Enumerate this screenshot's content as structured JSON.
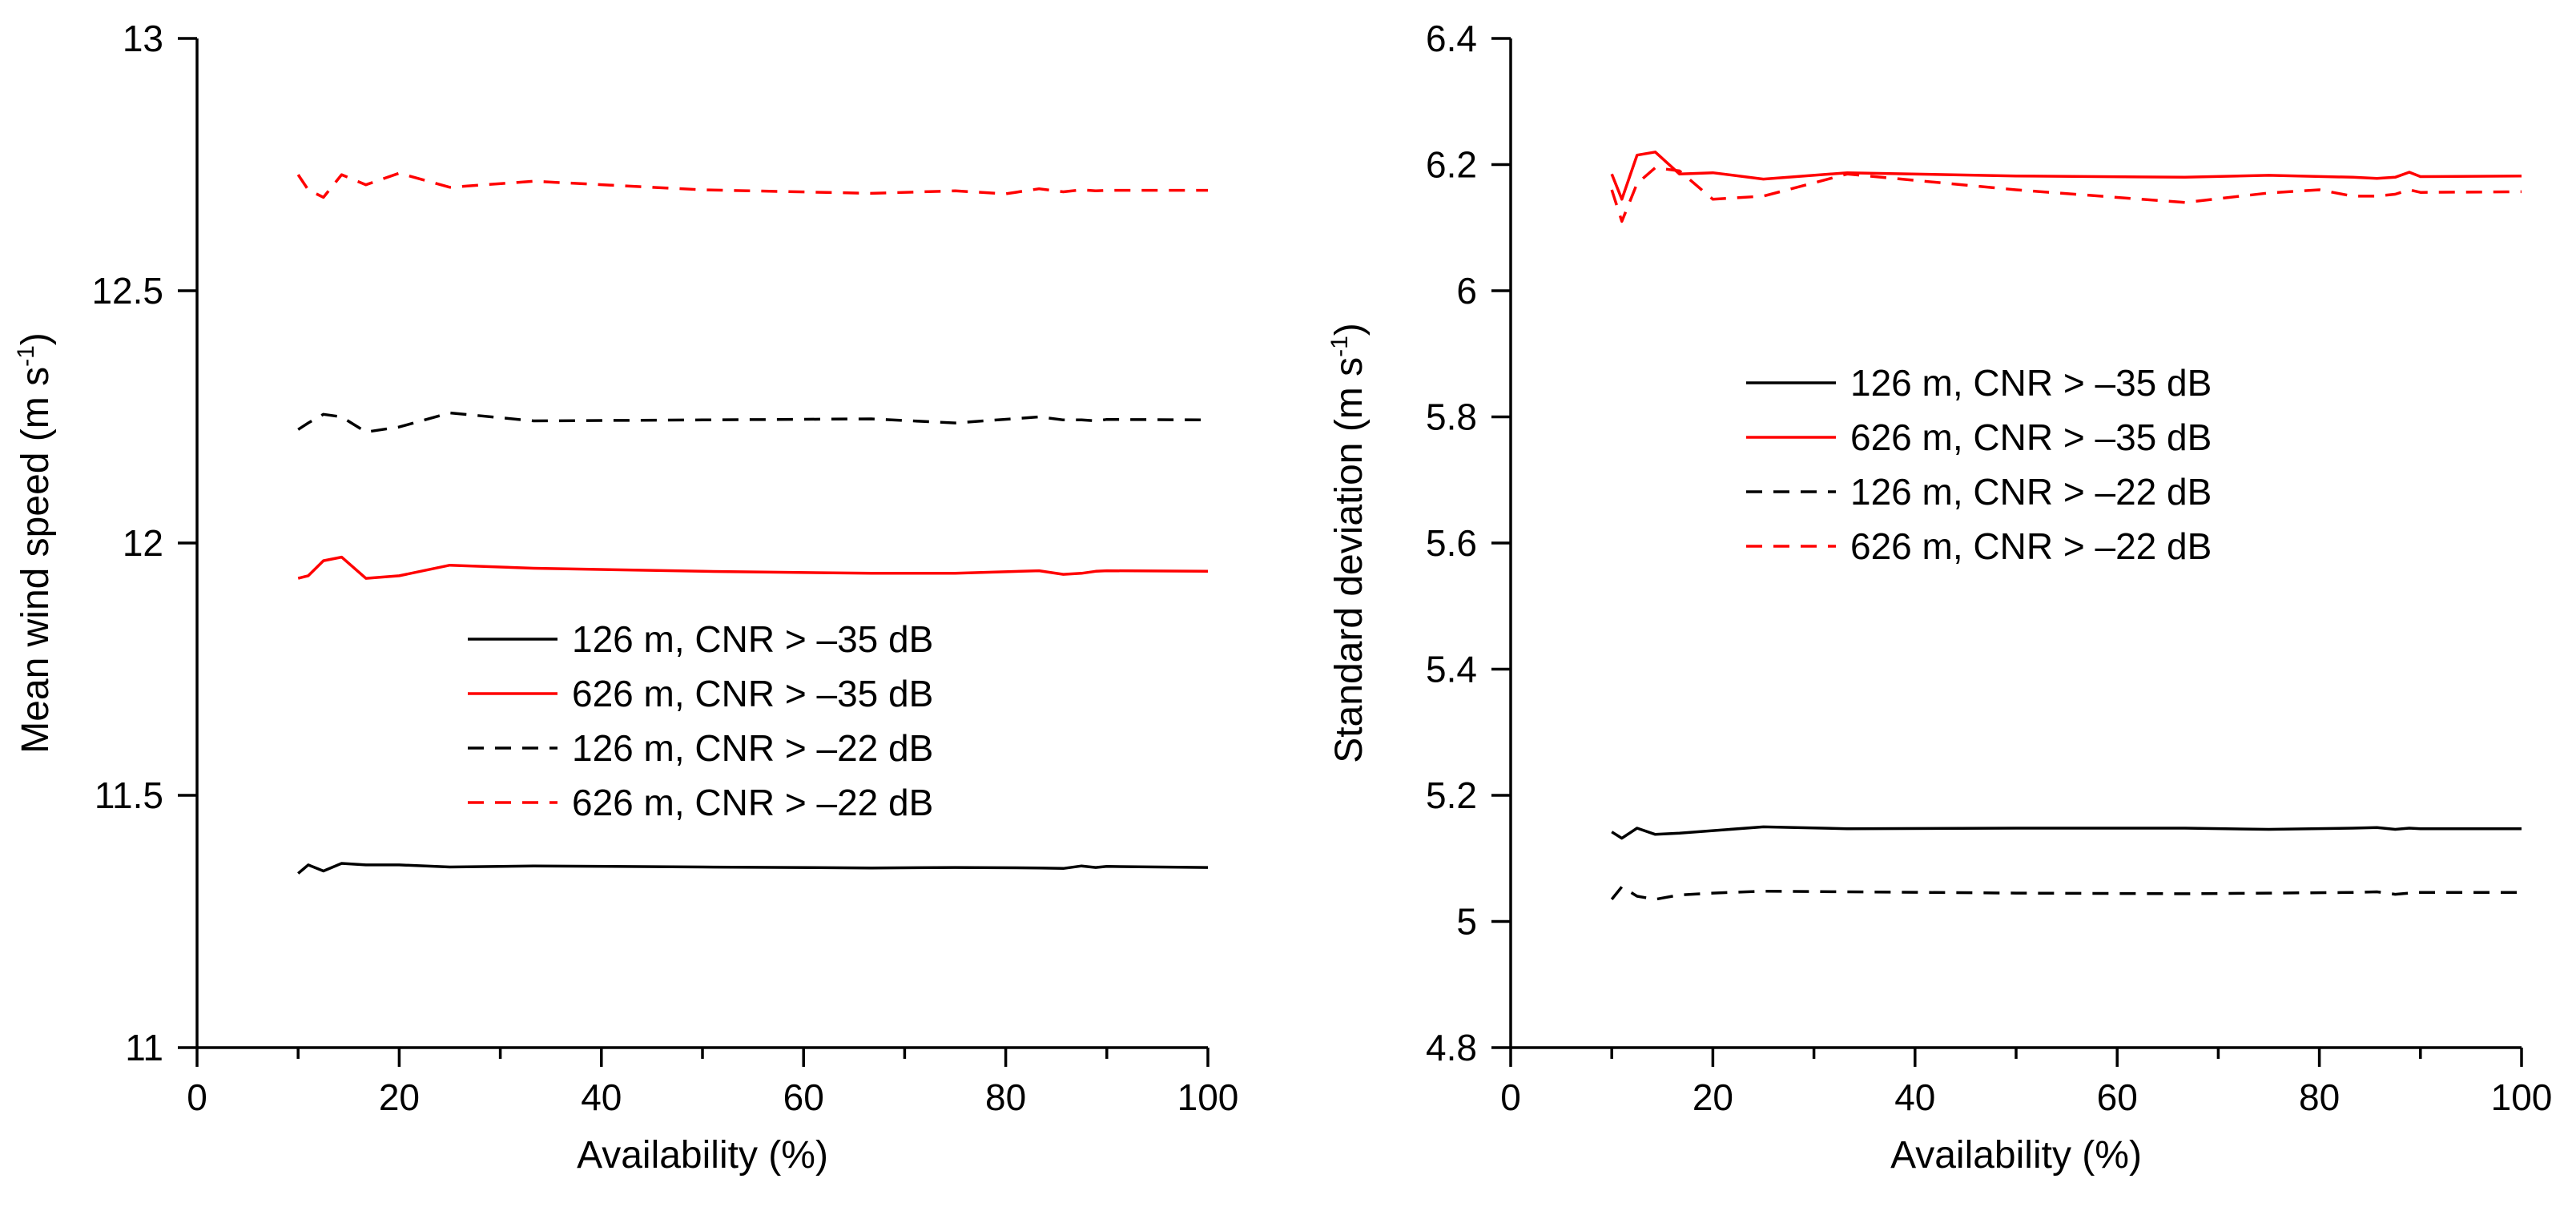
{
  "chart_data": [
    {
      "type": "line",
      "title": "",
      "xlabel": "Availability (%)",
      "ylabel": "Mean wind speed (m s",
      "ylabel_sup": "-1",
      "ylabel_close": ")",
      "xlim": [
        0,
        100
      ],
      "ylim": [
        11,
        13
      ],
      "xticks": [
        0,
        20,
        40,
        60,
        80,
        100
      ],
      "xtick_labels": [
        "0",
        "20",
        "40",
        "60",
        "80",
        "100"
      ],
      "yticks": [
        11,
        11.5,
        12,
        12.5,
        13
      ],
      "ytick_labels": [
        "11",
        "11.5",
        "12",
        "12.5",
        "13"
      ],
      "legend_position": "center",
      "series": [
        {
          "name": "126 m, CNR > –35 dB",
          "color": "#000000",
          "dash": "solid",
          "x": [
            10,
            11,
            12.5,
            14.3,
            16.7,
            20,
            25,
            33.3,
            50,
            66.7,
            75,
            83.3,
            85.7,
            87.5,
            88.9,
            90,
            100
          ],
          "y": [
            11.345,
            11.362,
            11.35,
            11.365,
            11.362,
            11.362,
            11.358,
            11.36,
            11.358,
            11.356,
            11.357,
            11.356,
            11.355,
            11.36,
            11.357,
            11.359,
            11.357
          ]
        },
        {
          "name": "626 m, CNR > –35 dB",
          "color": "#ff0000",
          "dash": "solid",
          "x": [
            10,
            11,
            12.5,
            14.3,
            16.7,
            20,
            25,
            33.3,
            50,
            66.7,
            75,
            83.3,
            85.7,
            87.5,
            88.9,
            90,
            100
          ],
          "y": [
            11.93,
            11.935,
            11.965,
            11.972,
            11.93,
            11.935,
            11.956,
            11.95,
            11.944,
            11.94,
            11.94,
            11.945,
            11.938,
            11.94,
            11.944,
            11.945,
            11.944
          ]
        },
        {
          "name": "126 m, CNR > –22 dB",
          "color": "#000000",
          "dash": "dashed",
          "x": [
            10,
            11,
            12.5,
            14.3,
            16.7,
            20,
            25,
            33.3,
            50,
            66.7,
            75,
            83.3,
            85.7,
            87.5,
            88.9,
            90,
            100
          ],
          "y": [
            12.225,
            12.238,
            12.255,
            12.25,
            12.22,
            12.23,
            12.258,
            12.242,
            12.244,
            12.246,
            12.238,
            12.25,
            12.244,
            12.244,
            12.242,
            12.245,
            12.244
          ]
        },
        {
          "name": "626 m, CNR > –22 dB",
          "color": "#ff0000",
          "dash": "dashed",
          "x": [
            10,
            11,
            12.5,
            14.3,
            16.7,
            20,
            25,
            33.3,
            50,
            66.7,
            75,
            80,
            83.3,
            85.7,
            87.5,
            88.9,
            90,
            100
          ],
          "y": [
            12.73,
            12.7,
            12.685,
            12.73,
            12.71,
            12.733,
            12.705,
            12.717,
            12.7,
            12.693,
            12.698,
            12.692,
            12.702,
            12.696,
            12.7,
            12.698,
            12.699,
            12.699
          ]
        }
      ]
    },
    {
      "type": "line",
      "title": "",
      "xlabel": "Availability (%)",
      "ylabel": "Standard deviation (m s",
      "ylabel_sup": "-1",
      "ylabel_close": ")",
      "xlim": [
        0,
        100
      ],
      "ylim": [
        4.8,
        6.4
      ],
      "xticks": [
        0,
        20,
        40,
        60,
        80,
        100
      ],
      "xtick_labels": [
        "0",
        "20",
        "40",
        "60",
        "80",
        "100"
      ],
      "yticks": [
        4.8,
        5,
        5.2,
        5.4,
        5.6,
        5.8,
        6,
        6.2,
        6.4
      ],
      "ytick_labels": [
        "4.8",
        "5",
        "5.2",
        "5.4",
        "5.6",
        "5.8",
        "6",
        "6.2",
        "6.4"
      ],
      "legend_position": "upper-center",
      "series": [
        {
          "name": "126 m, CNR > –35 dB",
          "color": "#000000",
          "dash": "solid",
          "x": [
            10,
            11,
            12.5,
            14.3,
            16.7,
            20,
            25,
            33.3,
            50,
            66.7,
            75,
            83.3,
            85.7,
            87.5,
            88.9,
            90,
            100
          ],
          "y": [
            5.142,
            5.132,
            5.148,
            5.138,
            5.14,
            5.144,
            5.15,
            5.147,
            5.148,
            5.148,
            5.146,
            5.148,
            5.149,
            5.146,
            5.148,
            5.147,
            5.147
          ]
        },
        {
          "name": "626 m, CNR > –35 dB",
          "color": "#ff0000",
          "dash": "solid",
          "x": [
            10,
            11,
            12.5,
            14.3,
            16.7,
            20,
            25,
            33.3,
            50,
            66.7,
            75,
            83.3,
            85.7,
            87.5,
            88.9,
            90,
            100
          ],
          "y": [
            6.185,
            6.145,
            6.215,
            6.22,
            6.185,
            6.187,
            6.177,
            6.187,
            6.182,
            6.18,
            6.183,
            6.18,
            6.178,
            6.18,
            6.188,
            6.181,
            6.182
          ]
        },
        {
          "name": "126 m, CNR > –22 dB",
          "color": "#000000",
          "dash": "dashed",
          "x": [
            10,
            11,
            12.5,
            14.3,
            16.7,
            20,
            25,
            33.3,
            50,
            66.7,
            75,
            83.3,
            85.7,
            87.5,
            88.9,
            90,
            100
          ],
          "y": [
            5.035,
            5.055,
            5.04,
            5.035,
            5.042,
            5.045,
            5.048,
            5.047,
            5.045,
            5.044,
            5.045,
            5.046,
            5.047,
            5.043,
            5.045,
            5.046,
            5.046
          ]
        },
        {
          "name": "626 m, CNR > –22 dB",
          "color": "#ff0000",
          "dash": "dashed",
          "x": [
            10,
            11,
            12.5,
            14.3,
            16.7,
            20,
            25,
            33.3,
            50,
            66.7,
            75,
            80,
            83.3,
            85.7,
            87.5,
            88.9,
            90,
            100
          ],
          "y": [
            6.16,
            6.11,
            6.17,
            6.195,
            6.19,
            6.145,
            6.15,
            6.185,
            6.16,
            6.14,
            6.155,
            6.16,
            6.15,
            6.15,
            6.153,
            6.16,
            6.156,
            6.157
          ]
        }
      ]
    }
  ]
}
